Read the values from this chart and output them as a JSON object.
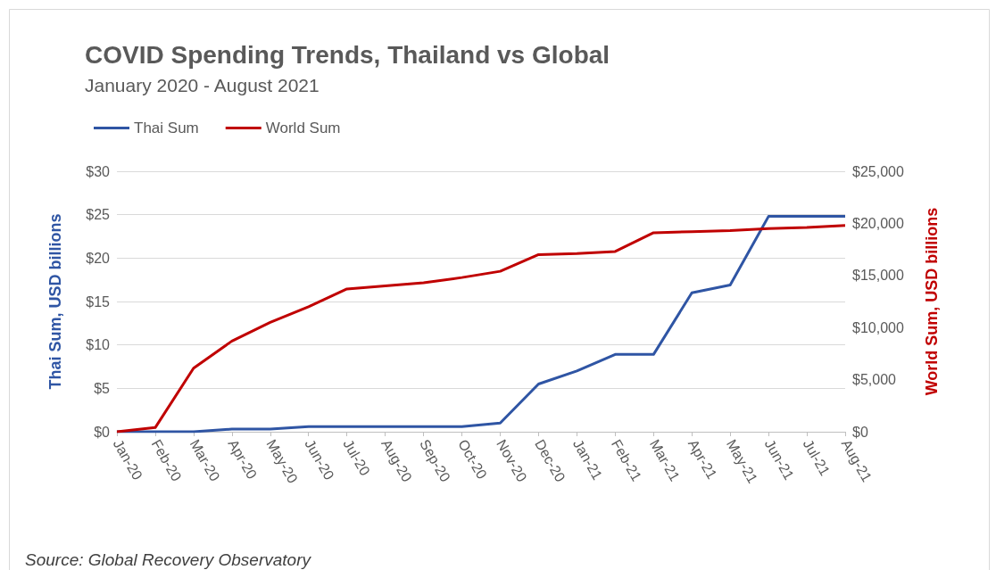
{
  "chart_data": {
    "type": "line",
    "title": "COVID Spending Trends, Thailand vs Global",
    "subtitle": "January 2020 - August 2021",
    "categories": [
      "Jan-20",
      "Feb-20",
      "Mar-20",
      "Apr-20",
      "May-20",
      "Jun-20",
      "Jul-20",
      "Aug-20",
      "Sep-20",
      "Oct-20",
      "Nov-20",
      "Dec-20",
      "Jan-21",
      "Feb-21",
      "Mar-21",
      "Apr-21",
      "May-21",
      "Jun-21",
      "Jul-21",
      "Aug-21"
    ],
    "series": [
      {
        "name": "Thai Sum",
        "color": "#2f55a4",
        "values": [
          0,
          0,
          0,
          0.3,
          0.3,
          0.6,
          0.6,
          0.6,
          0.6,
          0.6,
          1.0,
          5.5,
          7.0,
          8.9,
          8.9,
          16.0,
          16.9,
          24.8,
          24.8,
          24.8
        ]
      },
      {
        "name": "World Sum",
        "color": "#c00000",
        "axis": "y2",
        "values": [
          0,
          400,
          6100,
          8700,
          10500,
          12000,
          13700,
          14000,
          14300,
          14800,
          15400,
          17000,
          17100,
          17300,
          19100,
          19200,
          19300,
          19500,
          19600,
          19800
        ]
      }
    ],
    "ylabel": "Thai Sum, USD billions",
    "y2label": "World Sum, USD billions",
    "ylim": [
      0,
      30
    ],
    "yticks": [
      {
        "value": 0,
        "label": "$0"
      },
      {
        "value": 5,
        "label": "$5"
      },
      {
        "value": 10,
        "label": "$10"
      },
      {
        "value": 15,
        "label": "$15"
      },
      {
        "value": 20,
        "label": "$20"
      },
      {
        "value": 25,
        "label": "$25"
      },
      {
        "value": 30,
        "label": "$30"
      }
    ],
    "y2lim": [
      0,
      25000
    ],
    "y2ticks": [
      {
        "value": 0,
        "label": "$0"
      },
      {
        "value": 5000,
        "label": "$5,000"
      },
      {
        "value": 10000,
        "label": "$10,000"
      },
      {
        "value": 15000,
        "label": "$15,000"
      },
      {
        "value": 20000,
        "label": "$20,000"
      },
      {
        "value": 25000,
        "label": "$25,000"
      }
    ],
    "grid": "y",
    "legend": "top left",
    "marker": "none",
    "line_style": "solid",
    "annotations": [
      "Source: Global Recovery Observatory"
    ]
  }
}
